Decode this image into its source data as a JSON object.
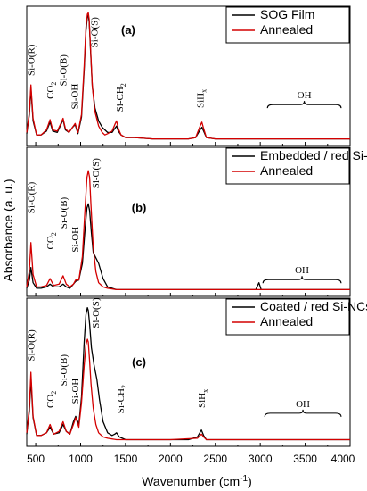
{
  "chart_data": {
    "type": "line",
    "xlabel": "Wavenumber (cm",
    "xlabel_sup": "-1",
    "xlabel_end": ")",
    "ylabel": "Absorbance (a. u.)",
    "xlim": [
      400,
      4000
    ],
    "x_ticks": [
      "500",
      "1000",
      "1500",
      "2000",
      "2500",
      "3000",
      "3500",
      "4000"
    ],
    "colors": {
      "black": "#000000",
      "red": "#d40000"
    },
    "panels": [
      {
        "tag": "(a)",
        "legend": [
          "SOG Film",
          "Annealed"
        ],
        "legend_position": "top-right",
        "annotations": [
          {
            "text": "Si-O(R)",
            "x": 445,
            "level": 0.5
          },
          {
            "text": "CO",
            "sub": "2",
            "x": 660,
            "level": 0.32
          },
          {
            "text": "Si-O(B)",
            "x": 800,
            "level": 0.42
          },
          {
            "text": "Si-OH",
            "x": 930,
            "level": 0.24
          },
          {
            "text": "Si-O(S)",
            "x": 1150,
            "level": 0.72
          },
          {
            "text": "Si-CH",
            "sub": "2",
            "x": 1430,
            "level": 0.22
          },
          {
            "text": "SiH",
            "sub": "x",
            "x": 2330,
            "level": 0.25
          },
          {
            "text": "OH",
            "x": 3560,
            "level": 0.36
          }
        ],
        "oh_bracket": [
          3080,
          3900
        ],
        "series": [
          {
            "name": "SOG Film",
            "color": "black",
            "x": [
              400,
              430,
              447,
              470,
              510,
              560,
              620,
              660,
              690,
              740,
              780,
              805,
              830,
              870,
              910,
              940,
              970,
              1010,
              1040,
              1060,
              1075,
              1085,
              1095,
              1110,
              1130,
              1160,
              1200,
              1240,
              1270,
              1300,
              1350,
              1380,
              1400,
              1420,
              1450,
              1500,
              1600,
              1800,
              2000,
              2200,
              2280,
              2330,
              2350,
              2370,
              2400,
              2500,
              2700,
              3000,
              3300,
              3600,
              4000
            ],
            "y": [
              0.05,
              0.2,
              0.4,
              0.15,
              0.04,
              0.04,
              0.07,
              0.14,
              0.07,
              0.06,
              0.12,
              0.16,
              0.08,
              0.06,
              0.1,
              0.12,
              0.05,
              0.18,
              0.55,
              0.85,
              0.96,
              0.97,
              0.92,
              0.7,
              0.42,
              0.25,
              0.15,
              0.1,
              0.08,
              0.06,
              0.06,
              0.09,
              0.11,
              0.07,
              0.04,
              0.02,
              0.02,
              0.01,
              0.01,
              0.01,
              0.02,
              0.08,
              0.1,
              0.07,
              0.02,
              0.01,
              0.01,
              0.01,
              0.01,
              0.01,
              0.01
            ]
          },
          {
            "name": "Annealed",
            "color": "red",
            "x": [
              400,
              430,
              447,
              470,
              510,
              560,
              620,
              660,
              690,
              740,
              780,
              805,
              830,
              870,
              910,
              940,
              970,
              1010,
              1040,
              1060,
              1075,
              1085,
              1095,
              1110,
              1130,
              1160,
              1200,
              1240,
              1270,
              1300,
              1350,
              1380,
              1400,
              1420,
              1450,
              1500,
              1600,
              1800,
              2000,
              2200,
              2280,
              2330,
              2350,
              2370,
              2400,
              2500,
              2700,
              3000,
              3300,
              3600,
              4000
            ],
            "y": [
              0.06,
              0.22,
              0.43,
              0.17,
              0.04,
              0.04,
              0.08,
              0.16,
              0.08,
              0.07,
              0.13,
              0.17,
              0.09,
              0.06,
              0.1,
              0.13,
              0.06,
              0.2,
              0.58,
              0.88,
              0.98,
              0.99,
              0.94,
              0.72,
              0.42,
              0.22,
              0.11,
              0.06,
              0.04,
              0.05,
              0.07,
              0.12,
              0.15,
              0.09,
              0.04,
              0.02,
              0.02,
              0.01,
              0.01,
              0.01,
              0.02,
              0.11,
              0.14,
              0.09,
              0.02,
              0.01,
              0.01,
              0.01,
              0.01,
              0.01,
              0.01
            ]
          }
        ]
      },
      {
        "tag": "(b)",
        "legend": [
          "Embedded / red Si-NCs",
          "Annealed"
        ],
        "legend_position": "top-right",
        "annotations": [
          {
            "text": "Si-O(R)",
            "x": 445,
            "level": 0.56
          },
          {
            "text": "CO",
            "sub": "2",
            "x": 660,
            "level": 0.3
          },
          {
            "text": "Si-O(B)",
            "x": 805,
            "level": 0.45
          },
          {
            "text": "Si-OH",
            "x": 935,
            "level": 0.28
          },
          {
            "text": "Si-O(S)",
            "x": 1165,
            "level": 0.74
          },
          {
            "text": "OH",
            "x": 3490,
            "level": 0.16
          }
        ],
        "oh_bracket": [
          3030,
          3900
        ],
        "series": [
          {
            "name": "Embedded / red Si-NCs",
            "color": "black",
            "x": [
              400,
              430,
              447,
              470,
              510,
              560,
              620,
              660,
              700,
              760,
              805,
              840,
              880,
              920,
              945,
              980,
              1020,
              1050,
              1070,
              1085,
              1100,
              1120,
              1140,
              1170,
              1200,
              1250,
              1300,
              1400,
              1600,
              2000,
              2500,
              2950,
              2985,
              3010,
              3100,
              4000
            ],
            "y": [
              0.02,
              0.08,
              0.17,
              0.06,
              0.02,
              0.02,
              0.03,
              0.05,
              0.03,
              0.03,
              0.05,
              0.03,
              0.02,
              0.05,
              0.07,
              0.08,
              0.2,
              0.45,
              0.6,
              0.63,
              0.58,
              0.42,
              0.28,
              0.24,
              0.2,
              0.09,
              0.03,
              0.01,
              0.01,
              0.01,
              0.01,
              0.01,
              0.06,
              0.01,
              0.01,
              0.01
            ]
          },
          {
            "name": "Annealed",
            "color": "red",
            "x": [
              400,
              430,
              447,
              470,
              510,
              560,
              620,
              660,
              700,
              760,
              805,
              840,
              880,
              920,
              945,
              980,
              1020,
              1050,
              1070,
              1085,
              1100,
              1115,
              1140,
              1170,
              1200,
              1250,
              1300,
              1400,
              1600,
              2000,
              2500,
              3000,
              3500,
              4000
            ],
            "y": [
              0.03,
              0.15,
              0.35,
              0.12,
              0.03,
              0.03,
              0.04,
              0.09,
              0.04,
              0.05,
              0.11,
              0.05,
              0.03,
              0.05,
              0.08,
              0.08,
              0.25,
              0.6,
              0.82,
              0.87,
              0.82,
              0.62,
              0.32,
              0.14,
              0.06,
              0.03,
              0.02,
              0.01,
              0.01,
              0.01,
              0.01,
              0.01,
              0.01,
              0.01
            ]
          }
        ]
      },
      {
        "tag": "(c)",
        "legend": [
          "Coated / red Si-NCs",
          "Annealed"
        ],
        "legend_position": "top-right",
        "annotations": [
          {
            "text": "Si-O(R)",
            "x": 445,
            "level": 0.58
          },
          {
            "text": "CO",
            "sub": "2",
            "x": 660,
            "level": 0.24
          },
          {
            "text": "Si-O(B)",
            "x": 805,
            "level": 0.4
          },
          {
            "text": "Si-OH",
            "x": 935,
            "level": 0.27
          },
          {
            "text": "Si-O(S)",
            "x": 1165,
            "level": 0.82
          },
          {
            "text": "Si-CH",
            "sub": "2",
            "x": 1440,
            "level": 0.2
          },
          {
            "text": "SiH",
            "sub": "x",
            "x": 2345,
            "level": 0.24
          },
          {
            "text": "OH",
            "x": 3490,
            "level": 0.28
          }
        ],
        "oh_bracket": [
          3050,
          3900
        ],
        "series": [
          {
            "name": "Coated / red Si-NCs",
            "color": "black",
            "x": [
              400,
              430,
              447,
              470,
              510,
              560,
              620,
              660,
              700,
              760,
              805,
              840,
              880,
              920,
              945,
              980,
              1010,
              1040,
              1060,
              1075,
              1085,
              1100,
              1120,
              1150,
              1180,
              1210,
              1250,
              1300,
              1350,
              1380,
              1400,
              1430,
              1500,
              1800,
              2200,
              2300,
              2345,
              2370,
              2400,
              2600,
              3000,
              3500,
              4000
            ],
            "y": [
              0.05,
              0.22,
              0.45,
              0.17,
              0.04,
              0.04,
              0.06,
              0.1,
              0.05,
              0.06,
              0.12,
              0.07,
              0.05,
              0.14,
              0.18,
              0.12,
              0.32,
              0.72,
              0.92,
              0.97,
              0.95,
              0.85,
              0.68,
              0.55,
              0.45,
              0.3,
              0.14,
              0.06,
              0.04,
              0.05,
              0.06,
              0.03,
              0.01,
              0.01,
              0.01,
              0.03,
              0.08,
              0.04,
              0.01,
              0.01,
              0.01,
              0.01,
              0.01
            ]
          },
          {
            "name": "Annealed",
            "color": "red",
            "x": [
              400,
              430,
              447,
              470,
              510,
              560,
              620,
              660,
              700,
              760,
              805,
              840,
              880,
              920,
              945,
              980,
              1010,
              1040,
              1060,
              1075,
              1085,
              1100,
              1115,
              1140,
              1170,
              1200,
              1250,
              1300,
              1400,
              1600,
              2000,
              2300,
              2345,
              2370,
              2400,
              3000,
              3500,
              4000
            ],
            "y": [
              0.06,
              0.25,
              0.5,
              0.18,
              0.04,
              0.04,
              0.06,
              0.12,
              0.05,
              0.07,
              0.14,
              0.07,
              0.05,
              0.12,
              0.17,
              0.1,
              0.28,
              0.55,
              0.7,
              0.74,
              0.72,
              0.58,
              0.42,
              0.24,
              0.12,
              0.06,
              0.03,
              0.02,
              0.01,
              0.01,
              0.01,
              0.02,
              0.05,
              0.03,
              0.01,
              0.01,
              0.01,
              0.01
            ]
          }
        ]
      }
    ]
  }
}
